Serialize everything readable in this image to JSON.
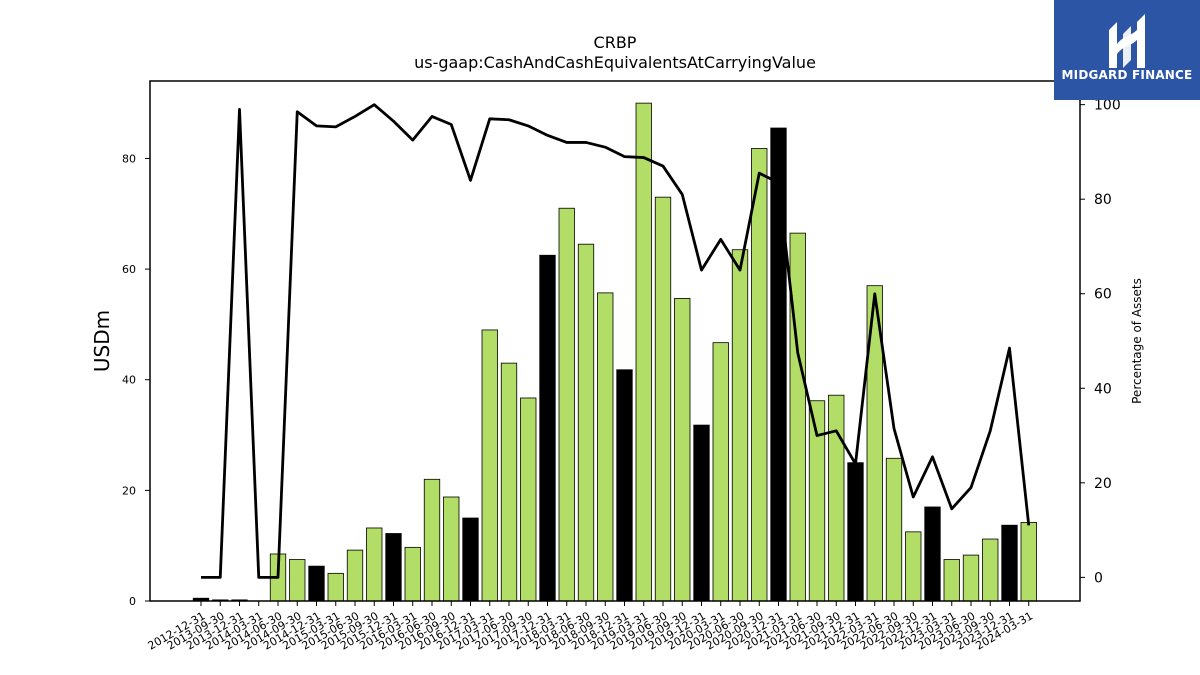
{
  "chart_data": {
    "type": "bar",
    "title": "CRBP",
    "subtitle": "us-gaap:CashAndCashEquivalentsAtCarryingValue",
    "ylabel": "USDm",
    "y2label": "Percentage of Assets",
    "ylim": [
      0,
      94
    ],
    "yticks": [
      0,
      20,
      40,
      60,
      80
    ],
    "y2lim": [
      -5,
      105
    ],
    "y2ticks": [
      0,
      20,
      40,
      60,
      80,
      100
    ],
    "categories": [
      "2012-12-31",
      "2013-09-30",
      "2013-12-31",
      "2014-03-31",
      "2014-06-30",
      "2014-09-30",
      "2014-12-31",
      "2015-03-31",
      "2015-06-30",
      "2015-09-30",
      "2015-12-31",
      "2016-03-31",
      "2016-06-30",
      "2016-09-30",
      "2016-12-31",
      "2017-03-31",
      "2017-06-30",
      "2017-09-30",
      "2017-12-31",
      "2018-03-31",
      "2018-06-30",
      "2018-09-30",
      "2018-12-31",
      "2019-03-31",
      "2019-06-30",
      "2019-09-30",
      "2019-12-31",
      "2020-03-31",
      "2020-06-30",
      "2020-09-30",
      "2020-12-31",
      "2021-03-31",
      "2021-06-30",
      "2021-09-30",
      "2021-12-31",
      "2022-03-31",
      "2022-06-30",
      "2022-09-30",
      "2022-12-31",
      "2023-03-31",
      "2023-06-30",
      "2023-09-30",
      "2023-12-31",
      "2024-03-31"
    ],
    "series": [
      {
        "kind": "bar",
        "values": [
          0.5,
          0.2,
          0.2,
          0.0,
          8.5,
          7.5,
          6.3,
          5.0,
          9.2,
          13.2,
          12.2,
          9.7,
          22.0,
          18.8,
          15.0,
          49.0,
          43.0,
          36.7,
          62.5,
          71.0,
          64.5,
          55.7,
          41.8,
          90.0,
          73.0,
          54.7,
          31.8,
          46.7,
          63.5,
          81.8,
          85.5,
          66.5,
          36.2,
          37.2,
          25.0,
          57.0,
          25.8,
          12.5,
          17.0,
          7.5,
          8.3,
          11.2,
          13.7,
          14.2
        ],
        "colors": [
          "#000000",
          "#000000",
          "#000000",
          "#000000",
          "#b2dd66",
          "#b2dd66",
          "#000000",
          "#b2dd66",
          "#b2dd66",
          "#b2dd66",
          "#000000",
          "#b2dd66",
          "#b2dd66",
          "#b2dd66",
          "#000000",
          "#b2dd66",
          "#b2dd66",
          "#b2dd66",
          "#000000",
          "#b2dd66",
          "#b2dd66",
          "#b2dd66",
          "#000000",
          "#b2dd66",
          "#b2dd66",
          "#b2dd66",
          "#000000",
          "#b2dd66",
          "#b2dd66",
          "#b2dd66",
          "#000000",
          "#b2dd66",
          "#b2dd66",
          "#b2dd66",
          "#000000",
          "#b2dd66",
          "#b2dd66",
          "#b2dd66",
          "#000000",
          "#b2dd66",
          "#b2dd66",
          "#b2dd66",
          "#000000",
          "#b2dd66"
        ]
      },
      {
        "kind": "line",
        "axis": "right",
        "color": "#000000",
        "values": [
          0,
          0,
          99,
          0,
          0,
          98.5,
          95.5,
          95.3,
          97.5,
          100,
          96.5,
          92.5,
          97.5,
          95.8,
          84,
          97,
          96.8,
          95.5,
          93.5,
          92,
          92,
          91,
          89,
          88.8,
          87,
          81,
          65,
          71.5,
          65,
          85.5,
          83.5,
          47.5,
          30,
          31,
          24,
          60,
          31.5,
          17,
          25.5,
          14.5,
          19,
          31,
          48.5,
          11
        ]
      }
    ],
    "accent_color": "#b2dd66",
    "bar_outline": "#000000"
  },
  "logo": {
    "text": "MIDGARD FINANCE",
    "background": "#2c55a6"
  }
}
